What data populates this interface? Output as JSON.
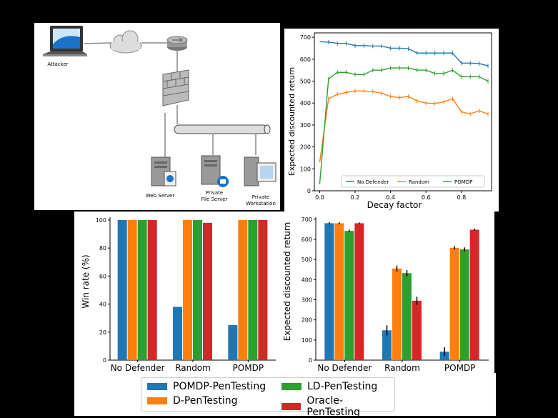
{
  "colors": {
    "blue": "#1f77b4",
    "orange": "#ff7f0e",
    "green": "#2ca02c",
    "red": "#d62728"
  },
  "network": {
    "nodes": {
      "attacker": "Attacker",
      "web_server": "Web Server",
      "file_server_line1": "Private",
      "file_server_line2": "File Server",
      "workstation_line1": "Private",
      "workstation_line2": "Workstation"
    }
  },
  "chart_data": [
    {
      "type": "line",
      "xlabel": "Decay factor",
      "ylabel": "Expected discounted return",
      "xlim": [
        -0.03,
        0.97
      ],
      "ylim": [
        0,
        720
      ],
      "xticks": [
        0.0,
        0.2,
        0.4,
        0.6,
        0.8
      ],
      "xtick_labels": [
        "0.0",
        "0.2",
        "0.4",
        "0.6",
        "0.8"
      ],
      "yticks": [
        0,
        100,
        200,
        300,
        400,
        500,
        600,
        700
      ],
      "legend": "bottom-right",
      "x": [
        0.0,
        0.05,
        0.1,
        0.15,
        0.2,
        0.25,
        0.3,
        0.35,
        0.4,
        0.45,
        0.5,
        0.55,
        0.6,
        0.65,
        0.7,
        0.75,
        0.8,
        0.85,
        0.9,
        0.95
      ],
      "series": [
        {
          "name": "No Defender",
          "color": "#1f77b4",
          "values": [
            680,
            678,
            672,
            672,
            662,
            662,
            660,
            660,
            650,
            650,
            648,
            628,
            628,
            628,
            628,
            628,
            582,
            582,
            580,
            570
          ]
        },
        {
          "name": "Random",
          "color": "#ff7f0e",
          "values": [
            130,
            420,
            440,
            448,
            455,
            455,
            452,
            445,
            430,
            425,
            430,
            410,
            400,
            398,
            405,
            420,
            360,
            350,
            365,
            350
          ]
        },
        {
          "name": "POMDP",
          "color": "#2ca02c",
          "values": [
            30,
            510,
            540,
            540,
            530,
            530,
            550,
            550,
            560,
            560,
            560,
            550,
            550,
            535,
            535,
            550,
            520,
            520,
            520,
            500
          ]
        }
      ]
    },
    {
      "type": "bar",
      "ylabel": "Win rate (%)",
      "categories": [
        "No Defender",
        "Random",
        "POMDP"
      ],
      "ylim": [
        0,
        102
      ],
      "yticks": [
        0,
        20,
        40,
        60,
        80,
        100
      ],
      "series": [
        {
          "name": "POMDP-PenTesting",
          "color": "#1f77b4",
          "values": [
            100,
            38,
            25
          ]
        },
        {
          "name": "D-PenTesting",
          "color": "#ff7f0e",
          "values": [
            100,
            100,
            100
          ]
        },
        {
          "name": "LD-PenTesting",
          "color": "#2ca02c",
          "values": [
            100,
            100,
            100
          ]
        },
        {
          "name": "Oracle-PenTesting",
          "color": "#d62728",
          "values": [
            100,
            98,
            100
          ]
        }
      ]
    },
    {
      "type": "bar",
      "ylabel": "Expected discounted return",
      "categories": [
        "No Defender",
        "Random",
        "POMDP"
      ],
      "ylim": [
        0,
        710
      ],
      "yticks": [
        0,
        100,
        200,
        300,
        400,
        500,
        600,
        700
      ],
      "series": [
        {
          "name": "POMDP-PenTesting",
          "color": "#1f77b4",
          "values": [
            680,
            148,
            42
          ],
          "errors": [
            5,
            25,
            22
          ]
        },
        {
          "name": "D-PenTesting",
          "color": "#ff7f0e",
          "values": [
            680,
            455,
            558
          ],
          "errors": [
            5,
            15,
            8
          ]
        },
        {
          "name": "LD-PenTesting",
          "color": "#2ca02c",
          "values": [
            642,
            432,
            550
          ],
          "errors": [
            6,
            15,
            10
          ]
        },
        {
          "name": "Oracle-PenTesting",
          "color": "#d62728",
          "values": [
            680,
            295,
            648
          ],
          "errors": [
            4,
            20,
            5
          ]
        }
      ]
    }
  ]
}
